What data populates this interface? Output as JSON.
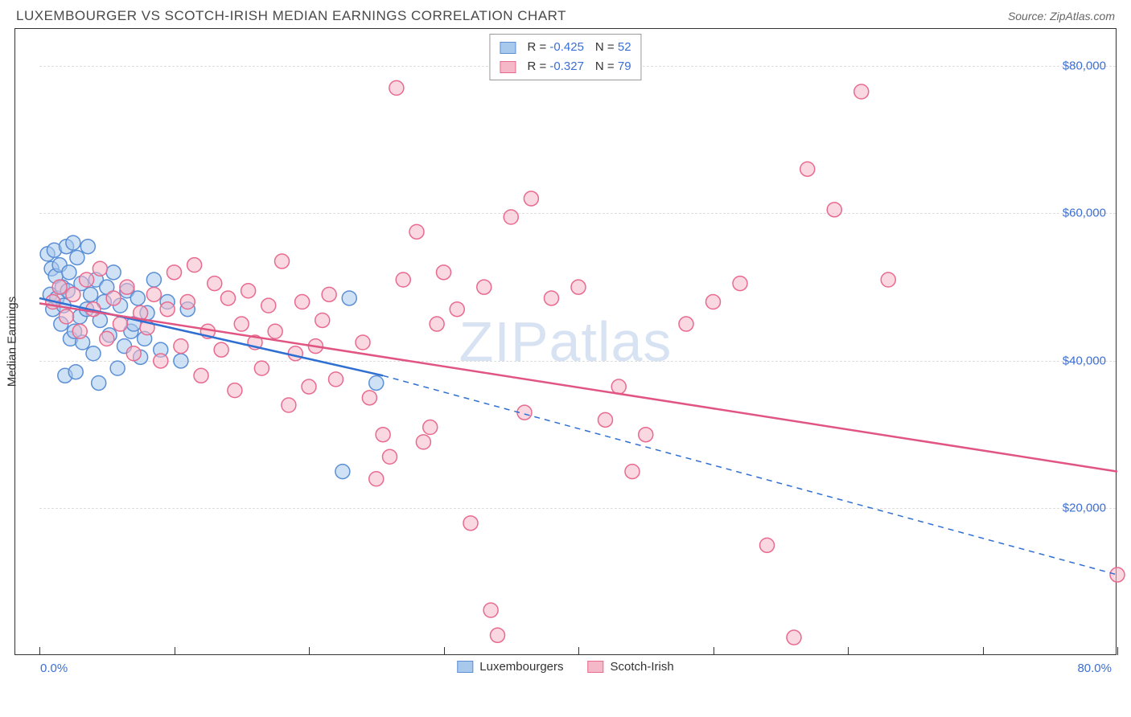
{
  "title": "LUXEMBOURGER VS SCOTCH-IRISH MEDIAN EARNINGS CORRELATION CHART",
  "source": "Source: ZipAtlas.com",
  "watermark": "ZIPatlas",
  "ylabel": "Median Earnings",
  "chart": {
    "type": "scatter",
    "xlim": [
      0,
      80
    ],
    "ylim": [
      0,
      85000
    ],
    "xticks": [
      0,
      10,
      20,
      30,
      40,
      50,
      60,
      70,
      80
    ],
    "yticks": [
      20000,
      40000,
      60000,
      80000
    ],
    "ytick_labels": [
      "$20,000",
      "$40,000",
      "$60,000",
      "$80,000"
    ],
    "x_min_label": "0.0%",
    "x_max_label": "80.0%",
    "grid_color": "#dddddd",
    "border_color": "#333333",
    "background_color": "#ffffff",
    "tick_label_color": "#3b6fd4",
    "label_fontsize": 15,
    "title_fontsize": 17,
    "marker_radius": 9,
    "marker_opacity": 0.55,
    "series": [
      {
        "name": "Luxembourgers",
        "color_fill": "#a8c8ec",
        "color_stroke": "#5b8fd6",
        "R": "-0.425",
        "N": "52",
        "trend": {
          "x1": 0,
          "y1": 48500,
          "x2": 25.5,
          "y2": 38000,
          "extrap_x2": 80,
          "extrap_y2": 11000,
          "stroke": "#2f6fd1",
          "width": 2.5
        },
        "points": [
          [
            0.6,
            54500
          ],
          [
            0.8,
            49000
          ],
          [
            0.9,
            52500
          ],
          [
            1.0,
            47000
          ],
          [
            1.1,
            55000
          ],
          [
            1.2,
            51500
          ],
          [
            1.3,
            48500
          ],
          [
            1.5,
            53000
          ],
          [
            1.6,
            45000
          ],
          [
            1.7,
            50000
          ],
          [
            1.8,
            47500
          ],
          [
            1.9,
            38000
          ],
          [
            2.0,
            55500
          ],
          [
            2.1,
            49500
          ],
          [
            2.2,
            52000
          ],
          [
            2.3,
            43000
          ],
          [
            2.5,
            56000
          ],
          [
            2.6,
            44000
          ],
          [
            2.7,
            38500
          ],
          [
            2.8,
            54000
          ],
          [
            3.0,
            46000
          ],
          [
            3.1,
            50500
          ],
          [
            3.2,
            42500
          ],
          [
            3.5,
            47000
          ],
          [
            3.6,
            55500
          ],
          [
            3.8,
            49000
          ],
          [
            4.0,
            41000
          ],
          [
            4.2,
            51000
          ],
          [
            4.4,
            37000
          ],
          [
            4.5,
            45500
          ],
          [
            4.8,
            48000
          ],
          [
            5.0,
            50000
          ],
          [
            5.2,
            43500
          ],
          [
            5.5,
            52000
          ],
          [
            5.8,
            39000
          ],
          [
            6.0,
            47500
          ],
          [
            6.3,
            42000
          ],
          [
            6.5,
            49500
          ],
          [
            6.8,
            44000
          ],
          [
            7.0,
            45000
          ],
          [
            7.3,
            48500
          ],
          [
            7.5,
            40500
          ],
          [
            7.8,
            43000
          ],
          [
            8.0,
            46500
          ],
          [
            8.5,
            51000
          ],
          [
            9.0,
            41500
          ],
          [
            9.5,
            48000
          ],
          [
            10.5,
            40000
          ],
          [
            11.0,
            47000
          ],
          [
            23.0,
            48500
          ],
          [
            22.5,
            25000
          ],
          [
            25.0,
            37000
          ]
        ]
      },
      {
        "name": "Scotch-Irish",
        "color_fill": "#f5b8c9",
        "color_stroke": "#e86b8f",
        "R": "-0.327",
        "N": "79",
        "trend": {
          "x1": 0,
          "y1": 47800,
          "x2": 80,
          "y2": 25000,
          "stroke": "#e15583",
          "width": 2.5
        },
        "points": [
          [
            1.0,
            48000
          ],
          [
            1.5,
            50000
          ],
          [
            2.0,
            46000
          ],
          [
            2.5,
            49000
          ],
          [
            3.0,
            44000
          ],
          [
            3.5,
            51000
          ],
          [
            4.0,
            47000
          ],
          [
            4.5,
            52500
          ],
          [
            5.0,
            43000
          ],
          [
            5.5,
            48500
          ],
          [
            6.0,
            45000
          ],
          [
            6.5,
            50000
          ],
          [
            7.0,
            41000
          ],
          [
            7.5,
            46500
          ],
          [
            8.0,
            44500
          ],
          [
            8.5,
            49000
          ],
          [
            9.0,
            40000
          ],
          [
            9.5,
            47000
          ],
          [
            10.0,
            52000
          ],
          [
            10.5,
            42000
          ],
          [
            11.0,
            48000
          ],
          [
            11.5,
            53000
          ],
          [
            12.0,
            38000
          ],
          [
            12.5,
            44000
          ],
          [
            13.0,
            50500
          ],
          [
            13.5,
            41500
          ],
          [
            14.0,
            48500
          ],
          [
            14.5,
            36000
          ],
          [
            15.0,
            45000
          ],
          [
            15.5,
            49500
          ],
          [
            16.0,
            42500
          ],
          [
            16.5,
            39000
          ],
          [
            17.0,
            47500
          ],
          [
            17.5,
            44000
          ],
          [
            18.0,
            53500
          ],
          [
            18.5,
            34000
          ],
          [
            19.0,
            41000
          ],
          [
            19.5,
            48000
          ],
          [
            20.0,
            36500
          ],
          [
            20.5,
            42000
          ],
          [
            21.0,
            45500
          ],
          [
            21.5,
            49000
          ],
          [
            22.0,
            37500
          ],
          [
            24.0,
            42500
          ],
          [
            24.5,
            35000
          ],
          [
            25.0,
            24000
          ],
          [
            25.5,
            30000
          ],
          [
            26.0,
            27000
          ],
          [
            26.5,
            77000
          ],
          [
            27.0,
            51000
          ],
          [
            28.0,
            57500
          ],
          [
            28.5,
            29000
          ],
          [
            29.0,
            31000
          ],
          [
            29.5,
            45000
          ],
          [
            30.0,
            52000
          ],
          [
            31.0,
            47000
          ],
          [
            32.0,
            18000
          ],
          [
            33.0,
            50000
          ],
          [
            33.5,
            6200
          ],
          [
            34.0,
            2800
          ],
          [
            35.0,
            59500
          ],
          [
            36.0,
            33000
          ],
          [
            36.5,
            62000
          ],
          [
            38.0,
            48500
          ],
          [
            40.0,
            50000
          ],
          [
            42.0,
            32000
          ],
          [
            43.0,
            36500
          ],
          [
            44.0,
            25000
          ],
          [
            45.0,
            30000
          ],
          [
            48.0,
            45000
          ],
          [
            50.0,
            48000
          ],
          [
            52.0,
            50500
          ],
          [
            54.0,
            15000
          ],
          [
            57.0,
            66000
          ],
          [
            56.0,
            2500
          ],
          [
            59.0,
            60500
          ],
          [
            61.0,
            76500
          ],
          [
            63.0,
            51000
          ],
          [
            80.0,
            11000
          ]
        ]
      }
    ],
    "bottom_legend": [
      {
        "swatch_fill": "#a8c8ec",
        "swatch_stroke": "#5b8fd6",
        "label": "Luxembourgers"
      },
      {
        "swatch_fill": "#f5b8c9",
        "swatch_stroke": "#e86b8f",
        "label": "Scotch-Irish"
      }
    ]
  }
}
